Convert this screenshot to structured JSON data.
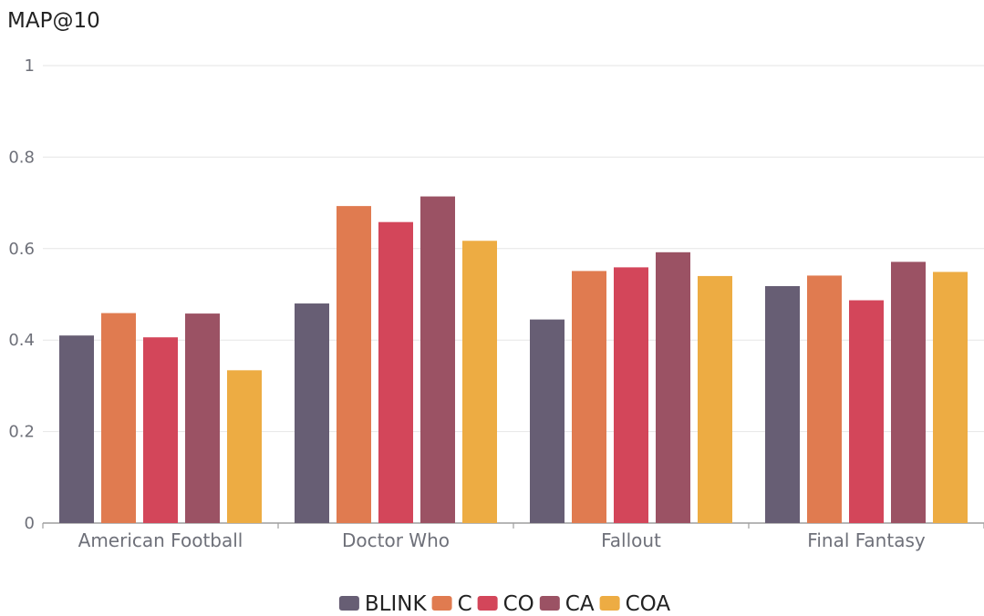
{
  "chart_data": {
    "type": "bar",
    "ylabel": "MAP@10",
    "xlabel": "",
    "ylim": [
      0,
      1
    ],
    "yticks": [
      "0",
      "0.2",
      "0.4",
      "0.6",
      "0.8",
      "1"
    ],
    "ytick_values": [
      0,
      0.2,
      0.4,
      0.6,
      0.8,
      1
    ],
    "grid": true,
    "legend_position": "bottom",
    "categories": [
      "American Football",
      "Doctor Who",
      "Fallout",
      "Final Fantasy"
    ],
    "series": [
      {
        "name": "BLINK",
        "color": "#675e74",
        "values": [
          0.41,
          0.48,
          0.445,
          0.518
        ]
      },
      {
        "name": "C",
        "color": "#e07b50",
        "values": [
          0.459,
          0.693,
          0.551,
          0.541
        ]
      },
      {
        "name": "CO",
        "color": "#d3465a",
        "values": [
          0.406,
          0.658,
          0.559,
          0.487
        ]
      },
      {
        "name": "CA",
        "color": "#9b5264",
        "values": [
          0.458,
          0.714,
          0.592,
          0.571
        ]
      },
      {
        "name": "COA",
        "color": "#edac43",
        "values": [
          0.334,
          0.617,
          0.54,
          0.549
        ]
      }
    ]
  }
}
